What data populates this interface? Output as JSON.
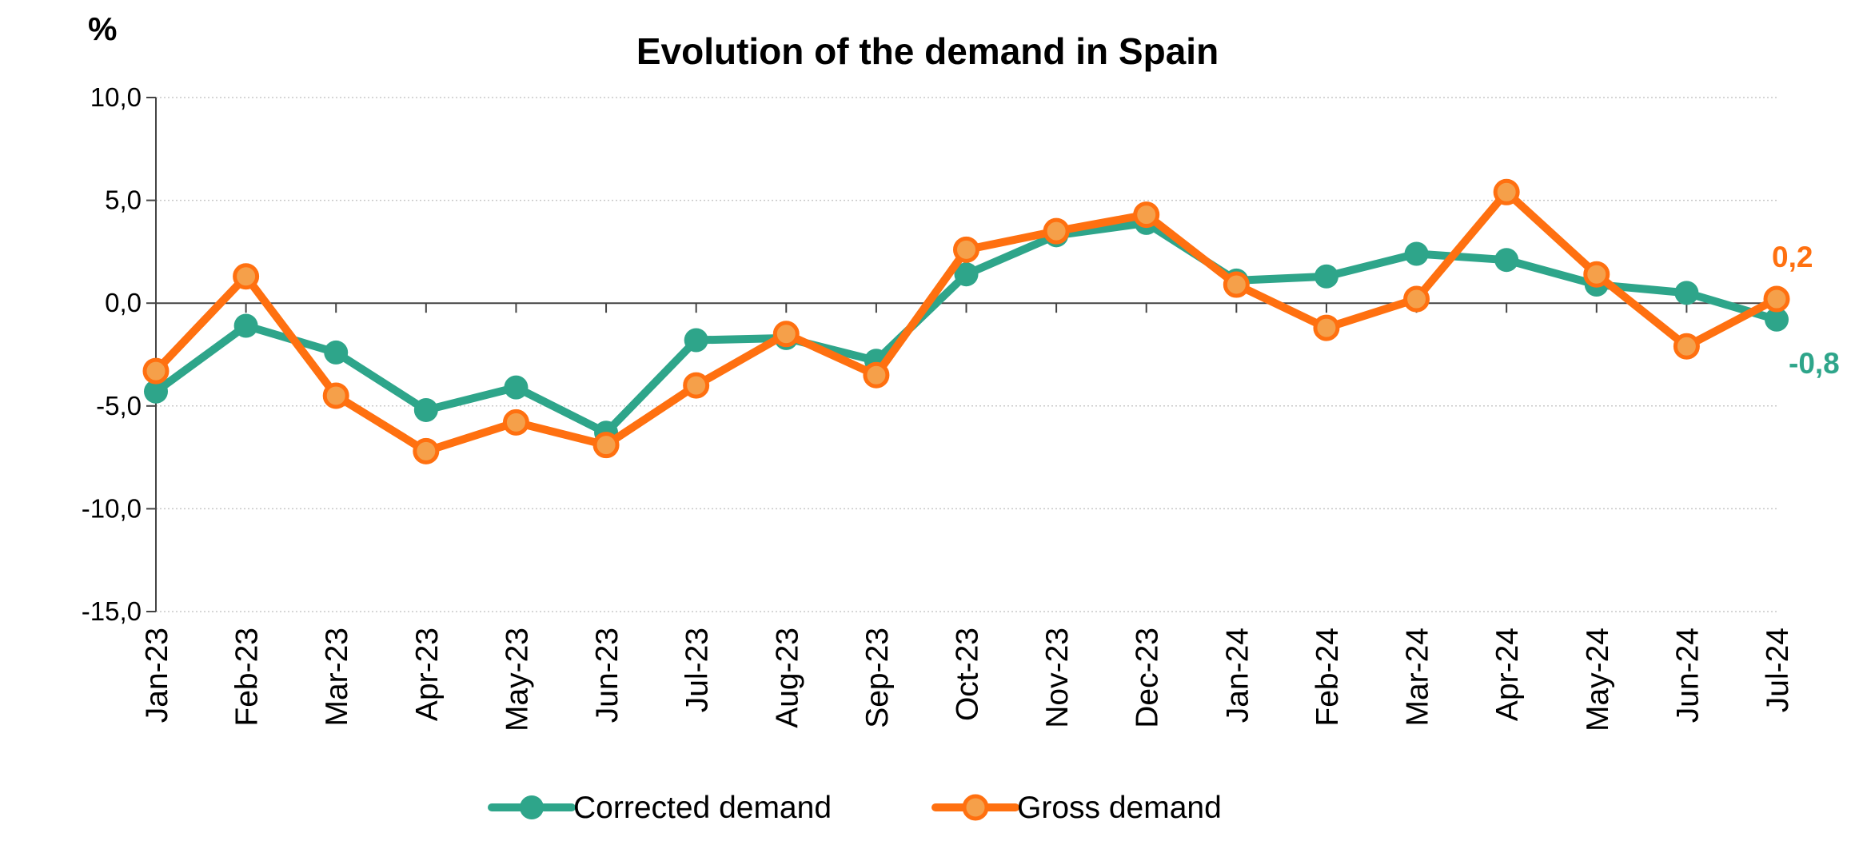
{
  "chart_data": {
    "type": "line",
    "title": "Evolution of the demand in Spain",
    "ylabel": "%",
    "xlabel": "",
    "ylim": [
      -15,
      10
    ],
    "yticks": [
      {
        "value": 10,
        "label": "10,0"
      },
      {
        "value": 5,
        "label": "5,0"
      },
      {
        "value": 0,
        "label": "0,0"
      },
      {
        "value": -5,
        "label": "-5,0"
      },
      {
        "value": -10,
        "label": "-10,0"
      },
      {
        "value": -15,
        "label": "-15,0"
      }
    ],
    "grid": true,
    "legend_position": "bottom",
    "categories": [
      "Jan-23",
      "Feb-23",
      "Mar-23",
      "Apr-23",
      "May-23",
      "Jun-23",
      "Jul-23",
      "Aug-23",
      "Sep-23",
      "Oct-23",
      "Nov-23",
      "Dec-23",
      "Jan-24",
      "Feb-24",
      "Mar-24",
      "Apr-24",
      "May-24",
      "Jun-24",
      "Jul-24"
    ],
    "series": [
      {
        "name": "Corrected demand",
        "color": "#2ea58a",
        "values": [
          -4.3,
          -1.1,
          -2.4,
          -5.2,
          -4.1,
          -6.3,
          -1.8,
          -1.7,
          -2.8,
          1.4,
          3.3,
          3.9,
          1.1,
          1.3,
          2.4,
          2.1,
          0.9,
          0.5,
          -0.8
        ],
        "end_label": "-0,8"
      },
      {
        "name": "Gross demand",
        "color": "#ff7010",
        "values": [
          -3.3,
          1.3,
          -4.5,
          -7.2,
          -5.8,
          -6.9,
          -4.0,
          -1.5,
          -3.5,
          2.6,
          3.5,
          4.3,
          0.9,
          -1.2,
          0.2,
          5.4,
          1.4,
          -2.1,
          0.2
        ],
        "end_label": "0,2"
      }
    ]
  }
}
